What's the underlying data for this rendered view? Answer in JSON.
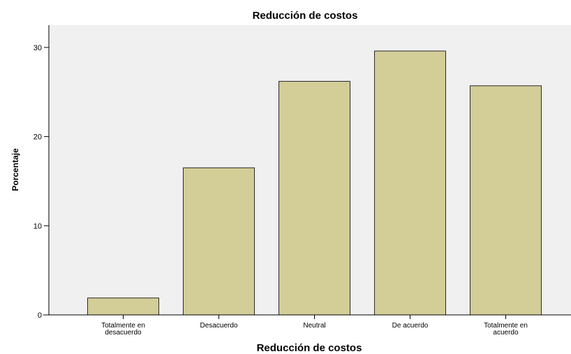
{
  "chart_data": {
    "type": "bar",
    "title": "Reducción de costos",
    "xlabel": "Reducción de costos",
    "ylabel": "Porcentaje",
    "categories": [
      [
        "Totalmente en",
        "desacuerdo"
      ],
      [
        "Desacuerdo"
      ],
      [
        "Neutral"
      ],
      [
        "De acuerdo"
      ],
      [
        "Totalmente en",
        "acuerdo"
      ]
    ],
    "values": [
      1.9,
      16.5,
      26.2,
      29.6,
      25.7
    ],
    "ylim": [
      0,
      32.5
    ],
    "yticks": [
      0,
      10,
      20,
      30
    ],
    "grid": false,
    "colors": {
      "bar_fill": "#d3cd97",
      "bar_stroke": "#2a2a2a",
      "plot_bg": "#f0f0f0",
      "axis": "#000000"
    }
  }
}
